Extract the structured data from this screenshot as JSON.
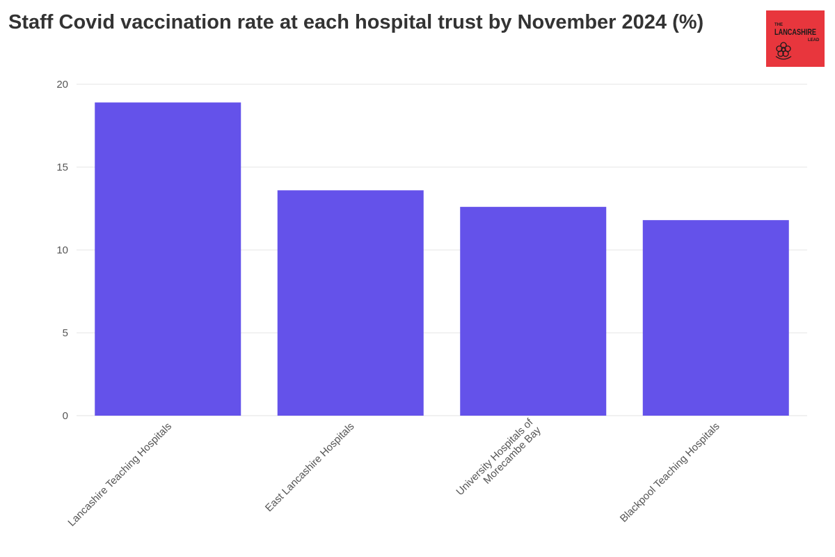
{
  "chart_data": {
    "type": "bar",
    "title": "Staff Covid vaccination rate at each hospital trust by November 2024 (%)",
    "categories": [
      [
        "Lancashire Teaching Hospitals"
      ],
      [
        "East Lancashire Hospitals"
      ],
      [
        "University Hospitals of",
        "Morecambe Bay"
      ],
      [
        "Blackpool Teaching Hospitals"
      ]
    ],
    "values": [
      18.9,
      13.6,
      12.6,
      11.8
    ],
    "ylim": [
      0,
      20
    ],
    "yticks": [
      0,
      5,
      10,
      15,
      20
    ],
    "grid": true,
    "bar_color": "#6452ea",
    "grid_color": "#e6e6e6"
  },
  "logo": {
    "line1": "THE",
    "line2": "LANCASHIRE",
    "line3": "LEAD",
    "background": "#e8363d"
  }
}
